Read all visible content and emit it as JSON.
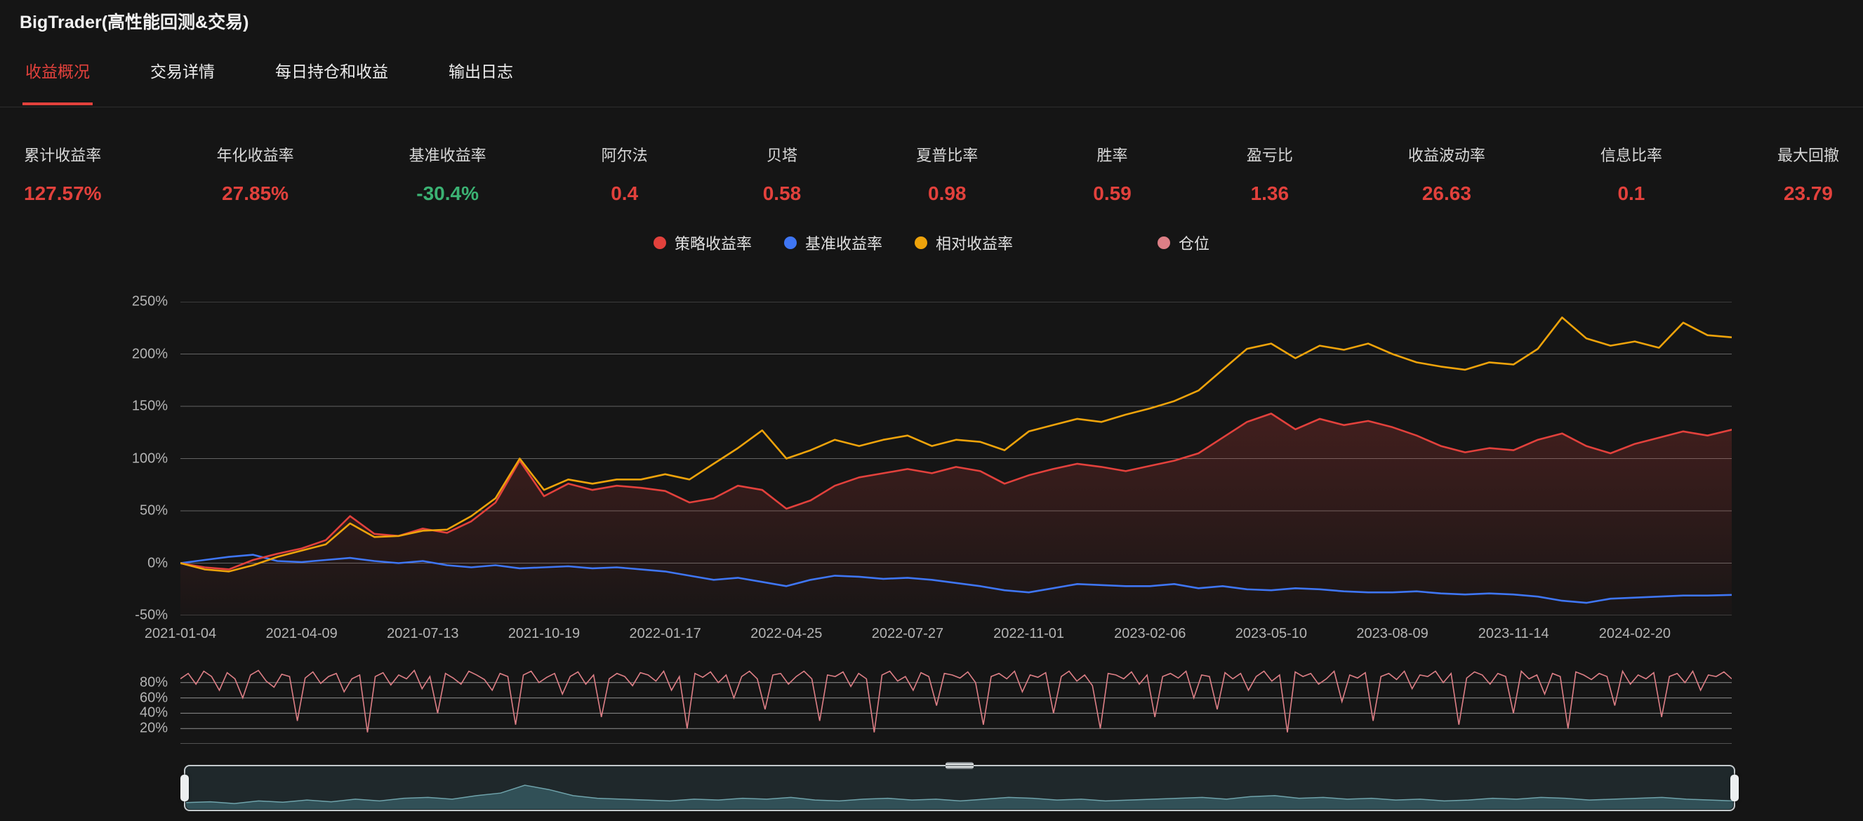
{
  "app": {
    "title": "BigTrader(高性能回测&交易)"
  },
  "tabs": {
    "active": "收益概况",
    "items": [
      "收益概况",
      "交易详情",
      "每日持仓和收益",
      "输出日志"
    ]
  },
  "metrics": [
    {
      "label": "累计收益率",
      "value": "127.57%",
      "color": "red"
    },
    {
      "label": "年化收益率",
      "value": "27.85%",
      "color": "red"
    },
    {
      "label": "基准收益率",
      "value": "-30.4%",
      "color": "green"
    },
    {
      "label": "阿尔法",
      "value": "0.4",
      "color": "red"
    },
    {
      "label": "贝塔",
      "value": "0.58",
      "color": "red"
    },
    {
      "label": "夏普比率",
      "value": "0.98",
      "color": "red"
    },
    {
      "label": "胜率",
      "value": "0.59",
      "color": "red"
    },
    {
      "label": "盈亏比",
      "value": "1.36",
      "color": "red"
    },
    {
      "label": "收益波动率",
      "value": "26.63",
      "color": "red"
    },
    {
      "label": "信息比率",
      "value": "0.1",
      "color": "red"
    },
    {
      "label": "最大回撤",
      "value": "23.79",
      "color": "red"
    }
  ],
  "colors": {
    "accent_red": "#e2413c",
    "positive_green": "#3bb273",
    "strategy": "#e2413c",
    "benchmark": "#3f76f4",
    "relative": "#eea30b",
    "position": "#dd7f86",
    "navigator_fill": "#33525a",
    "navigator_line": "#6fa3ab"
  },
  "legend": [
    {
      "name": "策略收益率",
      "color": "#e2413c"
    },
    {
      "name": "基准收益率",
      "color": "#3f76f4"
    },
    {
      "name": "相对收益率",
      "color": "#eea30b"
    },
    {
      "name": "仓位",
      "color": "#dd7f86"
    }
  ],
  "chart_data": [
    {
      "type": "line",
      "name": "收益曲线",
      "ylim": [
        -50,
        250
      ],
      "grid": true,
      "legend_position": "top-center",
      "y_tick_labels": [
        "250%",
        "200%",
        "150%",
        "100%",
        "50%",
        "0%",
        "-50%"
      ],
      "x_tick_labels": [
        "2021-01-04",
        "2021-04-09",
        "2021-07-13",
        "2021-10-19",
        "2022-01-17",
        "2022-04-25",
        "2022-07-27",
        "2022-11-01",
        "2023-02-06",
        "2023-05-10",
        "2023-08-09",
        "2023-11-14",
        "2024-02-20"
      ],
      "points_per_tick": 5,
      "series": [
        {
          "name": "策略收益率",
          "color": "#e2413c",
          "area": true,
          "values": [
            0,
            -4,
            -6,
            3,
            9,
            14,
            22,
            45,
            28,
            26,
            33,
            29,
            40,
            58,
            98,
            64,
            76,
            70,
            74,
            72,
            69,
            58,
            62,
            74,
            70,
            52,
            60,
            74,
            82,
            86,
            90,
            86,
            92,
            88,
            76,
            84,
            90,
            95,
            92,
            88,
            93,
            98,
            105,
            120,
            135,
            143,
            128,
            138,
            132,
            136,
            130,
            122,
            112,
            106,
            110,
            108,
            118,
            124,
            112,
            105,
            114,
            120,
            126,
            122,
            127.57
          ]
        },
        {
          "name": "基准收益率",
          "color": "#3f76f4",
          "area": false,
          "values": [
            0,
            3,
            6,
            8,
            2,
            1,
            3,
            5,
            2,
            0,
            2,
            -2,
            -4,
            -2,
            -5,
            -4,
            -3,
            -5,
            -4,
            -6,
            -8,
            -12,
            -16,
            -14,
            -18,
            -22,
            -16,
            -12,
            -13,
            -15,
            -14,
            -16,
            -19,
            -22,
            -26,
            -28,
            -24,
            -20,
            -21,
            -22,
            -22,
            -20,
            -24,
            -22,
            -25,
            -26,
            -24,
            -25,
            -27,
            -28,
            -28,
            -27,
            -29,
            -30,
            -29,
            -30,
            -32,
            -36,
            -38,
            -34,
            -33,
            -32,
            -31,
            -31,
            -30.4
          ]
        },
        {
          "name": "相对收益率",
          "color": "#eea30b",
          "area": false,
          "values": [
            0,
            -6,
            -8,
            -2,
            6,
            12,
            18,
            38,
            25,
            26,
            31,
            32,
            45,
            62,
            100,
            70,
            80,
            76,
            80,
            80,
            85,
            80,
            95,
            110,
            127,
            100,
            108,
            118,
            112,
            118,
            122,
            112,
            118,
            116,
            108,
            126,
            132,
            138,
            135,
            142,
            148,
            155,
            165,
            185,
            205,
            210,
            196,
            208,
            204,
            210,
            200,
            192,
            188,
            185,
            192,
            190,
            205,
            235,
            215,
            208,
            212,
            206,
            230,
            218,
            216
          ]
        }
      ]
    },
    {
      "type": "line",
      "name": "仓位",
      "ylim": [
        0,
        100
      ],
      "grid": true,
      "y_tick_labels": [
        "80%",
        "60%",
        "40%",
        "20%"
      ],
      "series": [
        {
          "name": "仓位",
          "color": "#dd7f86",
          "values": [
            85,
            92,
            78,
            95,
            88,
            70,
            93,
            85,
            60,
            90,
            96,
            82,
            74,
            91,
            88,
            30,
            86,
            94,
            79,
            88,
            92,
            68,
            85,
            90,
            15,
            88,
            93,
            77,
            90,
            85,
            96,
            72,
            88,
            40,
            92,
            86,
            78,
            95,
            90,
            84,
            70,
            92,
            88,
            25,
            90,
            95,
            80,
            87,
            92,
            65,
            88,
            94,
            78,
            90,
            35,
            85,
            92,
            88,
            76,
            93,
            90,
            82,
            95,
            70,
            88,
            20,
            92,
            87,
            94,
            80,
            90,
            60,
            88,
            95,
            85,
            45,
            90,
            92,
            78,
            88,
            95,
            85,
            30,
            90,
            88,
            94,
            75,
            92,
            85,
            15,
            90,
            95,
            82,
            88,
            70,
            93,
            88,
            50,
            92,
            90,
            86,
            94,
            80,
            25,
            88,
            92,
            85,
            95,
            68,
            90,
            87,
            93,
            40,
            88,
            95,
            82,
            90,
            76,
            20,
            92,
            90,
            85,
            94,
            78,
            90,
            35,
            88,
            92,
            86,
            95,
            60,
            90,
            88,
            45,
            93,
            85,
            92,
            70,
            88,
            95,
            82,
            90,
            15,
            94,
            88,
            92,
            78,
            85,
            95,
            55,
            90,
            86,
            93,
            30,
            88,
            92,
            84,
            95,
            72,
            90,
            88,
            95,
            80,
            92,
            25,
            86,
            94,
            90,
            78,
            92,
            88,
            40,
            95,
            85,
            90,
            65,
            92,
            88,
            20,
            94,
            90,
            84,
            92,
            88,
            50,
            95,
            78,
            90,
            85,
            93,
            35,
            88,
            92,
            80,
            95,
            70,
            90,
            88,
            94,
            85
          ]
        }
      ]
    },
    {
      "type": "area",
      "name": "缩放预览",
      "ylim": [
        0,
        100
      ],
      "values": [
        18,
        20,
        16,
        22,
        19,
        24,
        20,
        26,
        22,
        28,
        30,
        26,
        34,
        40,
        58,
        48,
        34,
        28,
        26,
        24,
        22,
        26,
        24,
        28,
        26,
        30,
        24,
        22,
        26,
        28,
        24,
        26,
        22,
        26,
        30,
        28,
        24,
        26,
        22,
        24,
        26,
        28,
        30,
        26,
        32,
        34,
        28,
        30,
        26,
        28,
        24,
        26,
        22,
        24,
        28,
        26,
        30,
        28,
        24,
        26,
        28,
        30,
        26,
        24,
        22
      ]
    }
  ]
}
